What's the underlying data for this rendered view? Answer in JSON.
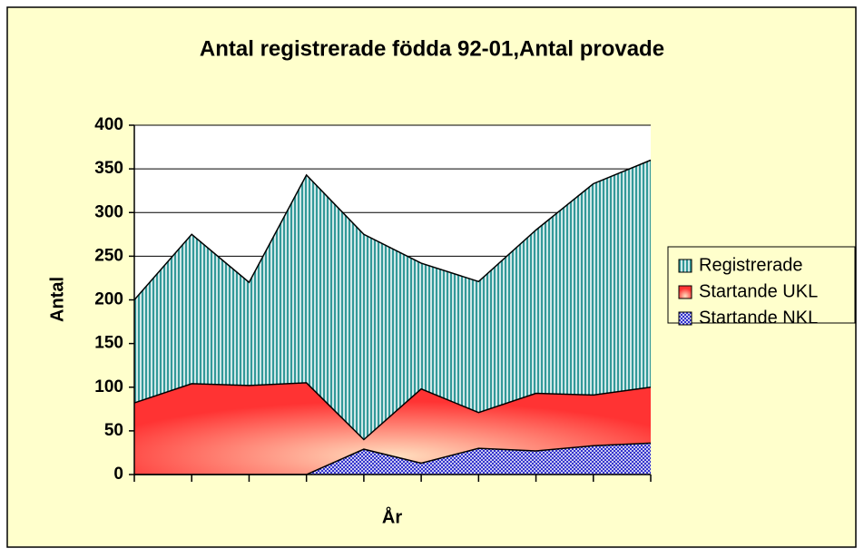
{
  "chart_data": {
    "type": "area",
    "title": "Antal registrerade födda 92-01,Antal provade",
    "x_label": "År",
    "y_label": "Antal",
    "categories": [
      null,
      null,
      null,
      null,
      null,
      null,
      null,
      null,
      null,
      null
    ],
    "series": [
      {
        "name": "Registrerade",
        "color": "#339999",
        "values": [
          200,
          275,
          220,
          343,
          275,
          242,
          221,
          280,
          333,
          360
        ]
      },
      {
        "name": "Startande UKL",
        "color": "#ff3333",
        "values": [
          82,
          104,
          102,
          105,
          40,
          98,
          71,
          93,
          91,
          100
        ]
      },
      {
        "name": "Startande NKL",
        "color": "#3333cc",
        "values": [
          0,
          0,
          0,
          0,
          29,
          13,
          30,
          27,
          33,
          36
        ]
      }
    ],
    "ylim": [
      0,
      400
    ],
    "yticks": [
      0,
      50,
      100,
      150,
      200,
      250,
      300,
      350,
      400
    ],
    "grid": true,
    "legend": "right"
  }
}
